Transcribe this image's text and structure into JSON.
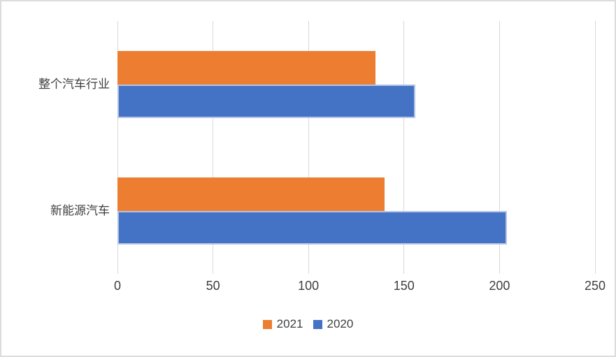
{
  "chart_data": {
    "type": "bar",
    "orientation": "horizontal",
    "title": "",
    "xlabel": "",
    "ylabel": "",
    "categories": [
      "整个汽车行业",
      "新能源汽车"
    ],
    "series": [
      {
        "name": "2021",
        "color": "#ED7D31",
        "border_color": null,
        "values": [
          135,
          140
        ]
      },
      {
        "name": "2020",
        "color": "#4472C4",
        "border_color": "#B3C4E4",
        "values": [
          156,
          204
        ]
      }
    ],
    "xlim": [
      0,
      250
    ],
    "x_ticks": [
      0,
      50,
      100,
      150,
      200,
      250
    ],
    "grid": true,
    "legend_position": "bottom-center"
  },
  "colors": {
    "background": "#FFFFFF",
    "frame_border": "#DCDCDC",
    "gridline": "#D9D9D9",
    "text": "#3F3F3F"
  }
}
